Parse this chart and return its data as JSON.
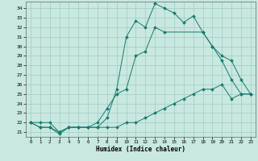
{
  "xlabel": "Humidex (Indice chaleur)",
  "background_color": "#c8e8e0",
  "grid_color": "#a0ccc4",
  "line_color": "#1a7a6e",
  "xlim": [
    -0.5,
    23.5
  ],
  "ylim": [
    20.5,
    34.7
  ],
  "xticks": [
    0,
    1,
    2,
    3,
    4,
    5,
    6,
    7,
    8,
    9,
    10,
    11,
    12,
    13,
    14,
    15,
    16,
    17,
    18,
    19,
    20,
    21,
    22,
    23
  ],
  "yticks": [
    21,
    22,
    23,
    24,
    25,
    26,
    27,
    28,
    29,
    30,
    31,
    32,
    33,
    34
  ],
  "curve1_x": [
    0,
    1,
    2,
    3,
    4,
    5,
    6,
    7,
    8,
    9,
    10,
    11,
    12,
    13,
    14,
    15,
    16,
    17,
    18,
    19,
    20,
    21,
    22,
    23
  ],
  "curve1_y": [
    22.0,
    21.5,
    21.5,
    20.8,
    21.5,
    21.5,
    21.5,
    21.5,
    22.5,
    25.5,
    31.0,
    32.7,
    32.0,
    34.5,
    34.0,
    33.5,
    32.5,
    33.2,
    31.5,
    30.0,
    28.5,
    26.5,
    25.0,
    25.0
  ],
  "curve2_x": [
    0,
    1,
    2,
    3,
    4,
    5,
    6,
    7,
    8,
    9,
    10,
    11,
    12,
    13,
    14,
    18,
    19,
    20,
    21,
    22,
    23
  ],
  "curve2_y": [
    22.0,
    21.5,
    21.5,
    21.0,
    21.5,
    21.5,
    21.5,
    22.0,
    23.5,
    25.0,
    25.5,
    29.0,
    29.5,
    32.0,
    31.5,
    31.5,
    30.0,
    29.0,
    28.5,
    26.5,
    25.0
  ],
  "curve3_x": [
    0,
    1,
    2,
    3,
    4,
    5,
    6,
    7,
    8,
    9,
    10,
    11,
    12,
    13,
    14,
    15,
    16,
    17,
    18,
    19,
    20,
    21,
    22,
    23
  ],
  "curve3_y": [
    22.0,
    22.0,
    22.0,
    21.0,
    21.5,
    21.5,
    21.5,
    21.5,
    21.5,
    21.5,
    22.0,
    22.0,
    22.5,
    23.0,
    23.5,
    24.0,
    24.5,
    25.0,
    25.5,
    25.5,
    26.0,
    24.5,
    25.0,
    25.0
  ]
}
